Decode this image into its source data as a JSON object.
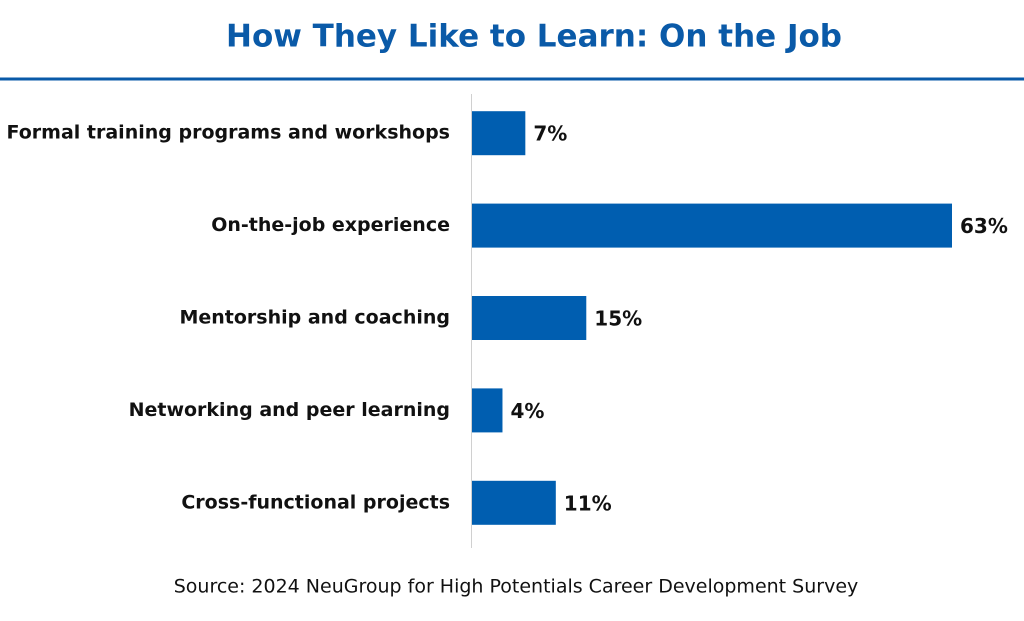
{
  "chart_data": {
    "type": "bar",
    "title": "How They Like to Learn: On the Job",
    "categories": [
      "Formal training programs and workshops",
      "On-the-job experience",
      "Mentorship and coaching",
      "Networking and peer learning",
      "Cross-functional projects"
    ],
    "values": [
      7,
      63,
      15,
      4,
      11
    ],
    "value_labels": [
      "7%",
      "63%",
      "15%",
      "4%",
      "11%"
    ],
    "color": "#005eb0",
    "source": "Source: 2024 NeuGroup for High Potentials Career Development Survey"
  }
}
